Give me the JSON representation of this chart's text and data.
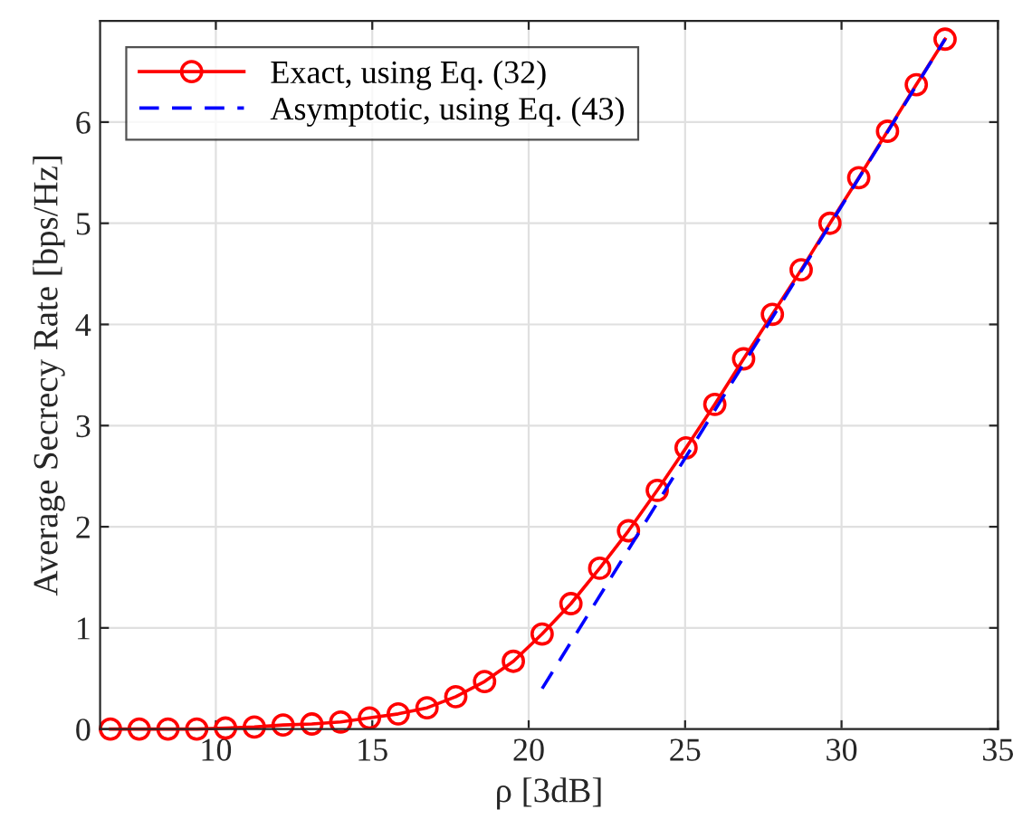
{
  "chart_data": {
    "type": "line",
    "xlabel": "ρ [3dB]",
    "ylabel": "Average Secrecy Rate [bps/Hz]",
    "xlim": [
      6.3,
      35
    ],
    "ylim": [
      0,
      7
    ],
    "xticks": [
      10,
      15,
      20,
      25,
      30,
      35
    ],
    "yticks": [
      0,
      1,
      2,
      3,
      4,
      5,
      6
    ],
    "grid": true,
    "legend": "top left",
    "series": [
      {
        "name": "Exact, using Eq. (32)",
        "color": "#ff0000",
        "marker": "circle",
        "line_style": "solid",
        "x": [
          6.63,
          7.55,
          8.47,
          9.39,
          10.31,
          11.23,
          12.15,
          13.07,
          13.99,
          14.91,
          15.83,
          16.75,
          17.67,
          18.59,
          19.51,
          20.43,
          21.35,
          22.27,
          23.19,
          24.11,
          25.03,
          25.95,
          26.87,
          27.79,
          28.71,
          29.63,
          30.55,
          31.47,
          32.39,
          33.31
        ],
        "values": [
          0,
          0,
          0,
          0,
          0.01,
          0.02,
          0.04,
          0.05,
          0.07,
          0.11,
          0.15,
          0.21,
          0.32,
          0.47,
          0.67,
          0.94,
          1.24,
          1.59,
          1.96,
          2.36,
          2.78,
          3.21,
          3.66,
          4.1,
          4.54,
          5.0,
          5.45,
          5.91,
          6.37,
          6.82
        ]
      },
      {
        "name": "Asymptotic, using Eq. (43)",
        "color": "#0000ff",
        "marker": "none",
        "line_style": "dashed",
        "x": [
          20.43,
          33.31
        ],
        "values": [
          0.4,
          6.82
        ]
      }
    ]
  }
}
